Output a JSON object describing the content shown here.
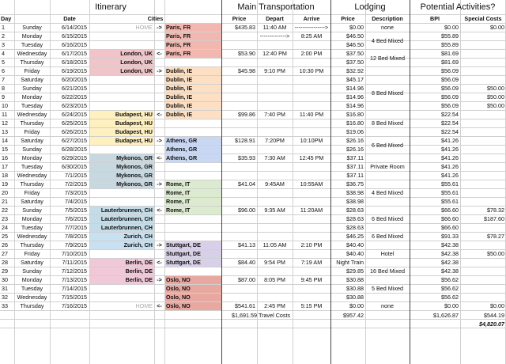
{
  "headers": {
    "itinerary": "Itinerary",
    "transport": "Main Transportation",
    "lodging": "Lodging",
    "activities": "Potential Activities?"
  },
  "subheaders": {
    "day": "Day",
    "date": "Date",
    "cities": "Cities",
    "price": "Price",
    "depart": "Depart",
    "arrive": "Arrive",
    "lprice": "Price",
    "description": "Description",
    "bpi": "BPI",
    "special": "Special Costs"
  },
  "colors": {
    "paris": "#f2b8b0",
    "london": "#f0c4c8",
    "dublin": "#fde0c4",
    "budapest": "#fff0c0",
    "athens": "#c8d8f4",
    "mykonos": "#c8d8e0",
    "rome": "#dcebd0",
    "lauter": "#c4dce8",
    "zurich": "#c8e0f0",
    "stuttgart": "#d8d0e8",
    "berlin": "#f0c8d8",
    "oslo": "#e8a8a0"
  },
  "rows": [
    {
      "day": "1",
      "dow": "Sunday",
      "date": "6/14/2015",
      "from": "HOME",
      "arrow": "->",
      "to": "Paris, FR",
      "price": "$435.83",
      "depart": "11:40 AM",
      "arrive": "---------------->",
      "lprice": "$0.00",
      "desc": "none",
      "bpi": "$0.00",
      "special": "$0.00"
    },
    {
      "day": "2",
      "dow": "Monday",
      "date": "6/15/2015",
      "from": "",
      "arrow": "",
      "to": "Paris, FR",
      "price": "",
      "depart": "-------------->",
      "arrive": "8:25 AM",
      "lprice": "$46.50",
      "desc": "",
      "bpi": "$55.89",
      "special": ""
    },
    {
      "day": "3",
      "dow": "Tuesday",
      "date": "6/16/2015",
      "from": "",
      "arrow": "",
      "to": "Paris, FR",
      "price": "",
      "depart": "",
      "arrive": "",
      "lprice": "$46.50",
      "desc": "",
      "bpi": "$55.89",
      "special": ""
    },
    {
      "day": "4",
      "dow": "Wednesday",
      "date": "6/17/2015",
      "from": "London, UK",
      "arrow": "<-",
      "to": "Paris, FR",
      "price": "$53.90",
      "depart": "12:40 PM",
      "arrive": "2:00 PM",
      "lprice": "$37.50",
      "desc": "",
      "bpi": "$81.69",
      "special": ""
    },
    {
      "day": "5",
      "dow": "Thursday",
      "date": "6/18/2015",
      "from": "London, UK",
      "arrow": "",
      "to": "",
      "price": "",
      "depart": "",
      "arrive": "",
      "lprice": "$37.50",
      "desc": "",
      "bpi": "$81.69",
      "special": ""
    },
    {
      "day": "6",
      "dow": "Friday",
      "date": "6/19/2015",
      "from": "London, UK",
      "arrow": "->",
      "to": "Dublin, IE",
      "price": "$45.98",
      "depart": "9:10 PM",
      "arrive": "10:30 PM",
      "lprice": "$32.92",
      "desc": "",
      "bpi": "$56.09",
      "special": ""
    },
    {
      "day": "7",
      "dow": "Saturday",
      "date": "6/20/2015",
      "from": "",
      "arrow": "",
      "to": "Dublin, IE",
      "price": "",
      "depart": "",
      "arrive": "",
      "lprice": "$45.17",
      "desc": "",
      "bpi": "$56.09",
      "special": ""
    },
    {
      "day": "8",
      "dow": "Sunday",
      "date": "6/21/2015",
      "from": "",
      "arrow": "",
      "to": "Dublin, IE",
      "price": "",
      "depart": "",
      "arrive": "",
      "lprice": "$14.96",
      "desc": "",
      "bpi": "$56.09",
      "special": "$50.00"
    },
    {
      "day": "9",
      "dow": "Monday",
      "date": "6/22/2015",
      "from": "",
      "arrow": "",
      "to": "Dublin, IE",
      "price": "",
      "depart": "",
      "arrive": "",
      "lprice": "$14.96",
      "desc": "",
      "bpi": "$56.09",
      "special": "$50.00"
    },
    {
      "day": "10",
      "dow": "Tuesday",
      "date": "6/23/2015",
      "from": "",
      "arrow": "",
      "to": "Dublin, IE",
      "price": "",
      "depart": "",
      "arrive": "",
      "lprice": "$14.96",
      "desc": "",
      "bpi": "$56.09",
      "special": "$50.00"
    },
    {
      "day": "11",
      "dow": "Wednesday",
      "date": "6/24/2015",
      "from": "Budapest, HU",
      "arrow": "<-",
      "to": "Dublin, IE",
      "price": "$99.86",
      "depart": "7:40 PM",
      "arrive": "11:40 PM",
      "lprice": "$16.80",
      "desc": "",
      "bpi": "$22.54",
      "special": ""
    },
    {
      "day": "12",
      "dow": "Thursday",
      "date": "6/25/2015",
      "from": "Budapest, HU",
      "arrow": "",
      "to": "",
      "price": "",
      "depart": "",
      "arrive": "",
      "lprice": "$16.80",
      "desc": "8 Bed Mixed",
      "bpi": "$22.54",
      "special": ""
    },
    {
      "day": "13",
      "dow": "Friday",
      "date": "6/26/2015",
      "from": "Budapest, HU",
      "arrow": "",
      "to": "",
      "price": "",
      "depart": "",
      "arrive": "",
      "lprice": "$19.06",
      "desc": "",
      "bpi": "$22.54",
      "special": ""
    },
    {
      "day": "14",
      "dow": "Saturday",
      "date": "6/27/2015",
      "from": "Budapest, HU",
      "arrow": "->",
      "to": "Athens, GR",
      "price": "$128.91",
      "depart": "7:20PM",
      "arrive": "10:10PM",
      "lprice": "$26.16",
      "desc": "",
      "bpi": "$41.26",
      "special": ""
    },
    {
      "day": "15",
      "dow": "Sunday",
      "date": "6/28/2015",
      "from": "",
      "arrow": "",
      "to": "Athens, GR",
      "price": "",
      "depart": "",
      "arrive": "",
      "lprice": "$26.16",
      "desc": "",
      "bpi": "$41.26",
      "special": ""
    },
    {
      "day": "16",
      "dow": "Monday",
      "date": "6/29/2015",
      "from": "Mykonos, GR",
      "arrow": "<-",
      "to": "Athens, GR",
      "price": "$35.93",
      "depart": "7:30 AM",
      "arrive": "12:45 PM",
      "lprice": "$37.11",
      "desc": "",
      "bpi": "$41.26",
      "special": ""
    },
    {
      "day": "17",
      "dow": "Tuesday",
      "date": "6/30/2015",
      "from": "Mykonos, GR",
      "arrow": "",
      "to": "",
      "price": "",
      "depart": "",
      "arrive": "",
      "lprice": "$37.11",
      "desc": "Private Room",
      "bpi": "$41.26",
      "special": ""
    },
    {
      "day": "18",
      "dow": "Wednesday",
      "date": "7/1/2015",
      "from": "Mykonos, GR",
      "arrow": "",
      "to": "",
      "price": "",
      "depart": "",
      "arrive": "",
      "lprice": "$37.11",
      "desc": "",
      "bpi": "$41.26",
      "special": ""
    },
    {
      "day": "19",
      "dow": "Thursday",
      "date": "7/2/2015",
      "from": "Mykonos, GR",
      "arrow": "->",
      "to": "Rome, IT",
      "price": "$41.04",
      "depart": "9:45AM",
      "arrive": "10:55AM",
      "lprice": "$36.75",
      "desc": "",
      "bpi": "$55.61",
      "special": ""
    },
    {
      "day": "20",
      "dow": "Friday",
      "date": "7/3/2015",
      "from": "",
      "arrow": "",
      "to": "Rome, IT",
      "price": "",
      "depart": "",
      "arrive": "",
      "lprice": "$38.98",
      "desc": "4 Bed Mixed",
      "bpi": "$55.61",
      "special": ""
    },
    {
      "day": "21",
      "dow": "Saturday",
      "date": "7/4/2015",
      "from": "",
      "arrow": "",
      "to": "Rome, IT",
      "price": "",
      "depart": "",
      "arrive": "",
      "lprice": "$38.98",
      "desc": "",
      "bpi": "$55.61",
      "special": ""
    },
    {
      "day": "22",
      "dow": "Sunday",
      "date": "7/5/2015",
      "from": "Lauterbrunnen, CH",
      "arrow": "<-",
      "to": "Rome, IT",
      "price": "$96.00",
      "depart": "9:35 AM",
      "arrive": "11:20AM",
      "lprice": "$28.63",
      "desc": "",
      "bpi": "$66.60",
      "special": "$78.32"
    },
    {
      "day": "23",
      "dow": "Monday",
      "date": "7/6/2015",
      "from": "Lauterbrunnen, CH",
      "arrow": "",
      "to": "",
      "price": "",
      "depart": "",
      "arrive": "",
      "lprice": "$28.63",
      "desc": "6 Bed Mixed",
      "bpi": "$66.60",
      "special": "$187.60"
    },
    {
      "day": "24",
      "dow": "Tuesday",
      "date": "7/7/2015",
      "from": "Lauterbrunnen, CH",
      "arrow": "",
      "to": "",
      "price": "",
      "depart": "",
      "arrive": "",
      "lprice": "$28.63",
      "desc": "",
      "bpi": "$66.60",
      "special": ""
    },
    {
      "day": "25",
      "dow": "Wednesday",
      "date": "7/8/2015",
      "from": "Zurich, CH",
      "arrow": "",
      "to": "",
      "price": "",
      "depart": "",
      "arrive": "",
      "lprice": "$46.25",
      "desc": "6 Bed Mixed",
      "bpi": "$91.33",
      "special": "$78.27"
    },
    {
      "day": "26",
      "dow": "Thursday",
      "date": "7/9/2015",
      "from": "Zurich, CH",
      "arrow": "->",
      "to": "Stuttgart, DE",
      "price": "$41.13",
      "depart": "11:05 AM",
      "arrive": "2:10 PM",
      "lprice": "$40.40",
      "desc": "",
      "bpi": "$42.38",
      "special": ""
    },
    {
      "day": "27",
      "dow": "Friday",
      "date": "7/10/2015",
      "from": "",
      "arrow": "",
      "to": "Stuttgart, DE",
      "price": "",
      "depart": "",
      "arrive": "",
      "lprice": "$40.40",
      "desc": "Hotel",
      "bpi": "$42.38",
      "special": "$50.00"
    },
    {
      "day": "28",
      "dow": "Saturday",
      "date": "7/11/2015",
      "from": "Berlin, DE",
      "arrow": "<-",
      "to": "Stuttgart, DE",
      "price": "$84.40",
      "depart": "9:54 PM",
      "arrive": "7:19 AM",
      "lprice": "Night Train",
      "desc": "",
      "bpi": "$42.38",
      "special": ""
    },
    {
      "day": "29",
      "dow": "Sunday",
      "date": "7/12/2015",
      "from": "Berlin, DE",
      "arrow": "",
      "to": "",
      "price": "",
      "depart": "",
      "arrive": "",
      "lprice": "$29.85",
      "desc": "16 Bed Mixed",
      "bpi": "$42.38",
      "special": ""
    },
    {
      "day": "30",
      "dow": "Monday",
      "date": "7/13/2015",
      "from": "Berlin, DE",
      "arrow": "->",
      "to": "Oslo, NO",
      "price": "$87.00",
      "depart": "8:05 PM",
      "arrive": "9:45 PM",
      "lprice": "$30.88",
      "desc": "",
      "bpi": "$56.62",
      "special": ""
    },
    {
      "day": "31",
      "dow": "Tuesday",
      "date": "7/14/2015",
      "from": "",
      "arrow": "",
      "to": "Oslo, NO",
      "price": "",
      "depart": "",
      "arrive": "",
      "lprice": "$30.88",
      "desc": "5 Bed Mixed",
      "bpi": "$56.62",
      "special": ""
    },
    {
      "day": "32",
      "dow": "Wednesday",
      "date": "7/15/2015",
      "from": "",
      "arrow": "",
      "to": "Oslo, NO",
      "price": "",
      "depart": "",
      "arrive": "",
      "lprice": "$30.88",
      "desc": "",
      "bpi": "$56.62",
      "special": ""
    },
    {
      "day": "33",
      "dow": "Thursday",
      "date": "7/16/2015",
      "from": "HOME",
      "arrow": "<-",
      "to": "Oslo, NO",
      "price": "$541.61",
      "depart": "2:45 PM",
      "arrive": "5:15 PM",
      "lprice": "$0.00",
      "desc": "none",
      "bpi": "$0.00",
      "special": "$0.00"
    }
  ],
  "merged_desc": [
    {
      "text": "4 Bed Mixed",
      "row": 2
    },
    {
      "text": "12 Bed Mixed",
      "row": 4
    },
    {
      "text": "8 Bed Mixed",
      "row": 8
    },
    {
      "text": "6 Bed Mixed",
      "row": 14
    }
  ],
  "totals": {
    "transport": "$1,691.59",
    "transport_label": "Travel Costs",
    "lodging": "$957.42",
    "bpi": "$1,626.87",
    "special": "$544.19",
    "grand": "$4,820.07"
  }
}
